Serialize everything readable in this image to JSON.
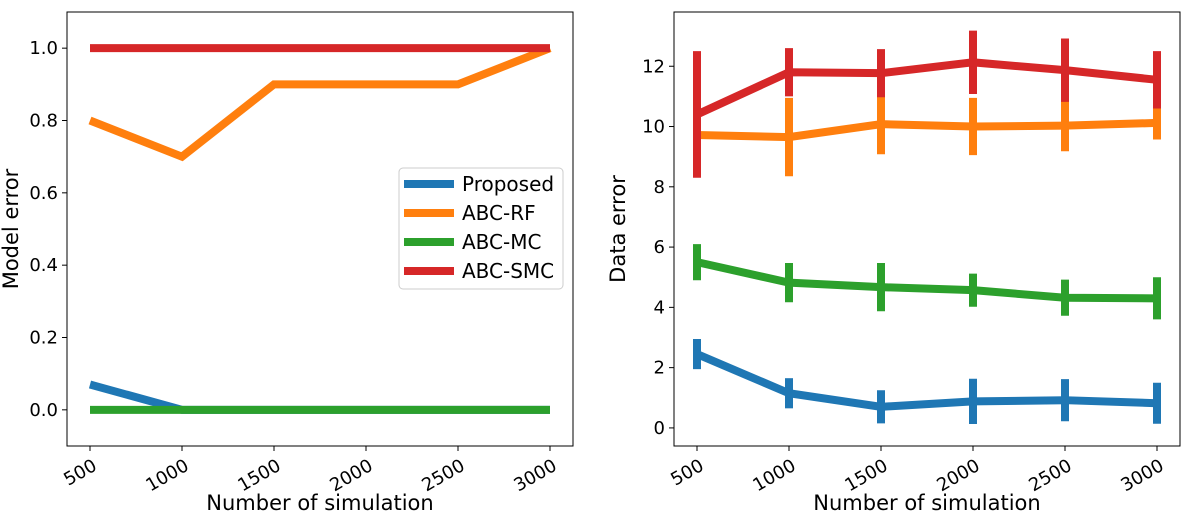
{
  "chart_data": [
    {
      "type": "line",
      "xlabel": "Number of simulation",
      "ylabel": "Model error",
      "x": [
        500,
        1000,
        1500,
        2000,
        2500,
        3000
      ],
      "xticks": [
        "500",
        "1000",
        "1500",
        "2000",
        "2500",
        "3000"
      ],
      "ylim": [
        -0.1,
        1.1
      ],
      "yticks": [
        "0.0",
        "0.2",
        "0.4",
        "0.6",
        "0.8",
        "1.0"
      ],
      "ytick_values": [
        0.0,
        0.2,
        0.4,
        0.6,
        0.8,
        1.0
      ],
      "legend": "center-right",
      "series": [
        {
          "name": "Proposed",
          "color": "#1f77b4",
          "values": [
            0.07,
            0.0,
            0.0,
            0.0,
            0.0,
            0.0
          ]
        },
        {
          "name": "ABC-RF",
          "color": "#ff7f0e",
          "values": [
            0.8,
            0.7,
            0.9,
            0.9,
            0.9,
            1.0
          ]
        },
        {
          "name": "ABC-MC",
          "color": "#2ca02c",
          "values": [
            0.0,
            0.0,
            0.0,
            0.0,
            0.0,
            0.0
          ]
        },
        {
          "name": "ABC-SMC",
          "color": "#d62728",
          "values": [
            1.0,
            1.0,
            1.0,
            1.0,
            1.0,
            1.0
          ]
        }
      ]
    },
    {
      "type": "line",
      "xlabel": "Number of simulation",
      "ylabel": "Data error",
      "x": [
        500,
        1000,
        1500,
        2000,
        2500,
        3000
      ],
      "xticks": [
        "500",
        "1000",
        "1500",
        "2000",
        "2500",
        "3000"
      ],
      "ylim": [
        -0.6,
        13.8
      ],
      "yticks": [
        "0",
        "2",
        "4",
        "6",
        "8",
        "10",
        "12"
      ],
      "ytick_values": [
        0,
        2,
        4,
        6,
        8,
        10,
        12
      ],
      "series": [
        {
          "color": "#1f77b4",
          "values": [
            2.45,
            1.15,
            0.7,
            0.88,
            0.92,
            0.82
          ],
          "errors": [
            0.5,
            0.5,
            0.55,
            0.75,
            0.7,
            0.68
          ]
        },
        {
          "color": "#ff7f0e",
          "values": [
            9.72,
            9.65,
            10.08,
            10.0,
            10.03,
            10.12
          ],
          "errors": [
            1.4,
            1.3,
            1.0,
            0.95,
            0.85,
            0.55
          ]
        },
        {
          "color": "#2ca02c",
          "values": [
            5.5,
            4.82,
            4.67,
            4.57,
            4.32,
            4.3
          ],
          "errors": [
            0.6,
            0.65,
            0.8,
            0.55,
            0.6,
            0.7
          ]
        },
        {
          "color": "#d62728",
          "values": [
            10.4,
            11.8,
            11.77,
            12.13,
            11.87,
            11.55
          ],
          "errors": [
            2.1,
            0.8,
            0.8,
            1.05,
            1.05,
            0.95
          ]
        }
      ]
    }
  ]
}
